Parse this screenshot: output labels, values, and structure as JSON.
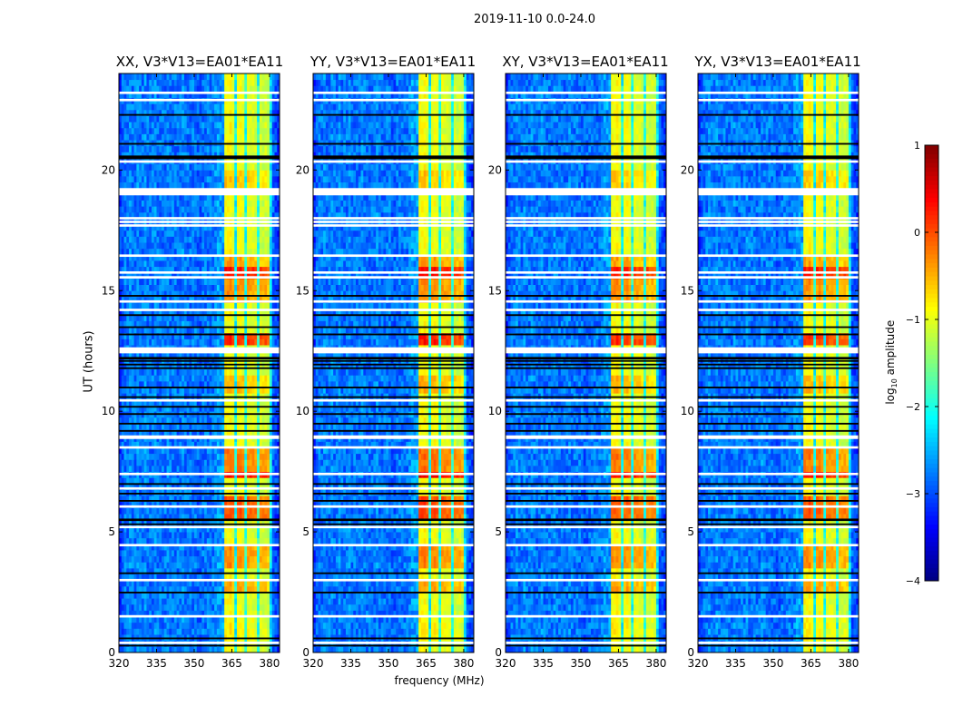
{
  "suptitle": "2019-11-10 0.0-24.0",
  "xlabel": "frequency (MHz)",
  "ylabel": "UT (hours)",
  "colorbar": {
    "label_main": "log",
    "label_sub": "10",
    "label_rest": " amplitude",
    "range": [
      -4,
      1
    ],
    "ticks": [
      1,
      0,
      -1,
      -2,
      -3,
      -4
    ],
    "tick_labels": [
      "1",
      "0",
      "−1",
      "−2",
      "−3",
      "−4"
    ]
  },
  "chart_data": {
    "type": "heatmap",
    "colormap": "jet",
    "xlim": [
      320,
      384
    ],
    "ylim": [
      0,
      24
    ],
    "xticks": [
      320,
      335,
      350,
      365,
      380
    ],
    "yticks": [
      0,
      5,
      10,
      15,
      20
    ],
    "freq_bin_mhz": 1,
    "time_bin_hours": 0.25,
    "freq_profile_log10": [
      -3.1,
      -2.9,
      -2.8,
      -2.8,
      -2.7,
      -2.8,
      -2.8,
      -2.7,
      -2.8,
      -2.8,
      -2.7,
      -2.8,
      -2.8,
      -2.8,
      -2.7,
      -2.8,
      -2.8,
      -2.8,
      -2.8,
      -2.7,
      -2.8,
      -2.8,
      -2.8,
      -2.8,
      -2.8,
      -2.7,
      -2.8,
      -2.8,
      -2.8,
      -2.8,
      -2.8,
      -2.9,
      -2.9,
      -2.8,
      -2.8,
      -2.8,
      -2.8,
      -2.8,
      -2.7,
      -2.6,
      -2.6,
      -2.6,
      -0.9,
      -0.9,
      -0.85,
      -1.0,
      -2.1,
      -0.95,
      -0.9,
      -1.0,
      -2.0,
      -1.0,
      -1.05,
      -1.05,
      -1.1,
      -2.0,
      -1.1,
      -1.15,
      -1.1,
      -1.2,
      -2.2,
      -2.9,
      -3.0,
      -3.1
    ],
    "band_range_mhz": [
      362,
      381
    ],
    "band_events": [
      {
        "start": 0.5,
        "end": 1.5,
        "boost": 0.1
      },
      {
        "start": 2.5,
        "end": 3.0,
        "boost": 0.5
      },
      {
        "start": 3.5,
        "end": 4.5,
        "boost": 0.6
      },
      {
        "start": 5.5,
        "end": 6.5,
        "boost": 0.9
      },
      {
        "start": 7.2,
        "end": 7.4,
        "boost": 1.3
      },
      {
        "start": 7.5,
        "end": 8.5,
        "boost": 0.7
      },
      {
        "start": 10.8,
        "end": 11.4,
        "boost": 0.4
      },
      {
        "start": 12.8,
        "end": 13.2,
        "boost": 1.1
      },
      {
        "start": 14.6,
        "end": 15.4,
        "boost": 0.6
      },
      {
        "start": 15.6,
        "end": 16.0,
        "boost": 1.2
      },
      {
        "start": 16.1,
        "end": 16.6,
        "boost": 0.5
      },
      {
        "start": 19.3,
        "end": 20.0,
        "boost": 0.3
      }
    ],
    "flagged_white_hours": [
      [
        0.35,
        0.45
      ],
      [
        1.45,
        1.55
      ],
      [
        2.95,
        3.05
      ],
      [
        4.4,
        4.5
      ],
      [
        5.15,
        5.25
      ],
      [
        6.0,
        6.1
      ],
      [
        6.75,
        6.85
      ],
      [
        7.35,
        7.45
      ],
      [
        8.45,
        8.55
      ],
      [
        8.85,
        9.0
      ],
      [
        10.4,
        10.5
      ],
      [
        12.4,
        12.65
      ],
      [
        14.15,
        14.25
      ],
      [
        14.5,
        14.6
      ],
      [
        15.5,
        15.6
      ],
      [
        15.7,
        15.8
      ],
      [
        16.4,
        16.5
      ],
      [
        17.65,
        17.75
      ],
      [
        17.8,
        17.9
      ],
      [
        17.95,
        18.05
      ],
      [
        18.95,
        19.25
      ],
      [
        20.3,
        20.4
      ],
      [
        22.85,
        22.95
      ],
      [
        23.15,
        23.25
      ]
    ],
    "flagged_black_hours": [
      [
        0.25,
        0.32
      ],
      [
        0.55,
        0.62
      ],
      [
        2.45,
        2.52
      ],
      [
        3.25,
        3.32
      ],
      [
        5.28,
        5.35
      ],
      [
        5.45,
        5.55
      ],
      [
        6.25,
        6.32
      ],
      [
        6.55,
        6.62
      ],
      [
        6.95,
        7.02
      ],
      [
        9.15,
        9.22
      ],
      [
        9.45,
        9.52
      ],
      [
        9.85,
        9.92
      ],
      [
        10.15,
        10.22
      ],
      [
        10.55,
        10.62
      ],
      [
        10.95,
        11.02
      ],
      [
        11.75,
        11.82
      ],
      [
        11.9,
        11.97
      ],
      [
        12.05,
        12.12
      ],
      [
        12.15,
        12.25
      ],
      [
        13.15,
        13.22
      ],
      [
        13.45,
        13.52
      ],
      [
        13.95,
        14.02
      ],
      [
        14.75,
        14.82
      ],
      [
        20.45,
        20.6
      ],
      [
        21.05,
        21.12
      ],
      [
        22.25,
        22.32
      ]
    ],
    "panels": [
      {
        "title": "XX, V3*V13=EA01*EA11",
        "band_scale": 1.0
      },
      {
        "title": "YY, V3*V13=EA01*EA11",
        "band_scale": 1.05
      },
      {
        "title": "XY, V3*V13=EA01*EA11",
        "band_scale": 0.95
      },
      {
        "title": "YX, V3*V13=EA01*EA11",
        "band_scale": 0.95
      }
    ]
  }
}
